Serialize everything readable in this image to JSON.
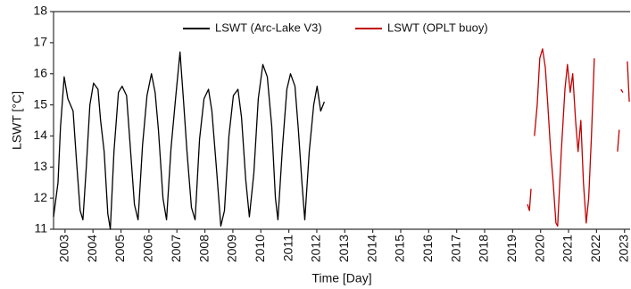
{
  "chart_data": {
    "type": "line",
    "y_label": "LSWT [°C]",
    "x_label": "Time [Day]",
    "xlim": [
      2002.59,
      2023.2
    ],
    "ylim": [
      11,
      18
    ],
    "xticks": [
      2003,
      2004,
      2005,
      2006,
      2007,
      2008,
      2009,
      2010,
      2011,
      2012,
      2013,
      2014,
      2015,
      2016,
      2017,
      2018,
      2019,
      2020,
      2021,
      2022,
      2023
    ],
    "yticks": [
      11,
      12,
      13,
      14,
      15,
      16,
      17,
      18
    ],
    "legend": "top-center",
    "series": [
      {
        "name": "LSWT (Arc-Lake V3)",
        "color": "#000000",
        "x": [
          2002.59,
          2002.75,
          2002.84,
          2002.97,
          2003.1,
          2003.29,
          2003.41,
          2003.54,
          2003.64,
          2003.76,
          2003.89,
          2004.02,
          2004.18,
          2004.27,
          2004.4,
          2004.53,
          2004.62,
          2004.75,
          2004.91,
          2005.04,
          2005.2,
          2005.32,
          2005.48,
          2005.61,
          2005.77,
          2005.93,
          2006.09,
          2006.22,
          2006.34,
          2006.5,
          2006.63,
          2006.79,
          2006.95,
          2007.11,
          2007.24,
          2007.36,
          2007.52,
          2007.65,
          2007.81,
          2007.97,
          2008.13,
          2008.25,
          2008.41,
          2008.57,
          2008.7,
          2008.86,
          2009.02,
          2009.18,
          2009.31,
          2009.46,
          2009.59,
          2009.75,
          2009.91,
          2010.07,
          2010.23,
          2010.39,
          2010.52,
          2010.61,
          2010.77,
          2010.93,
          2011.06,
          2011.22,
          2011.34,
          2011.47,
          2011.57,
          2011.73,
          2011.89,
          2012.01,
          2012.14,
          2012.27
        ],
        "values": [
          11.4,
          12.5,
          14.3,
          15.9,
          15.2,
          14.8,
          13.2,
          11.6,
          11.3,
          13.0,
          15.0,
          15.7,
          15.5,
          14.5,
          13.5,
          11.5,
          11.0,
          13.5,
          15.4,
          15.6,
          15.3,
          13.8,
          11.8,
          11.3,
          13.7,
          15.3,
          16.0,
          15.4,
          14.2,
          12.0,
          11.3,
          13.6,
          15.2,
          16.7,
          15.1,
          13.5,
          11.7,
          11.3,
          13.9,
          15.2,
          15.5,
          14.8,
          13.0,
          11.1,
          11.6,
          14.0,
          15.3,
          15.5,
          14.6,
          12.6,
          11.4,
          12.8,
          15.2,
          16.3,
          15.9,
          14.3,
          12.0,
          11.3,
          13.6,
          15.5,
          16.0,
          15.6,
          14.2,
          12.5,
          11.3,
          13.5,
          15.0,
          15.6,
          14.8,
          15.1
        ]
      },
      {
        "name": "LSWT (OPLT buoy)",
        "color": "#c00000",
        "x": [
          2019.53,
          2019.6,
          2019.66,
          2019.72,
          2019.78,
          2019.88,
          2019.97,
          2020.07,
          2020.17,
          2020.26,
          2020.36,
          2020.45,
          2020.55,
          2020.61,
          2020.74,
          2020.87,
          2020.96,
          2021.06,
          2021.15,
          2021.25,
          2021.34,
          2021.44,
          2021.53,
          2021.63,
          2021.72,
          2021.82,
          2021.92,
          2022.3,
          2022.75,
          2022.81,
          2022.84,
          2022.87,
          2022.94,
          2023.0,
          2023.1,
          2023.17
        ],
        "values": [
          11.8,
          11.6,
          12.3,
          null,
          14.0,
          15.0,
          16.5,
          16.8,
          16.2,
          15.0,
          13.5,
          12.5,
          11.2,
          11.1,
          13.5,
          15.5,
          16.3,
          15.4,
          16.0,
          14.5,
          13.5,
          14.5,
          12.5,
          11.2,
          12.0,
          14.0,
          16.5,
          null,
          13.5,
          14.2,
          null,
          15.5,
          15.4,
          null,
          16.4,
          15.1
        ]
      }
    ]
  }
}
